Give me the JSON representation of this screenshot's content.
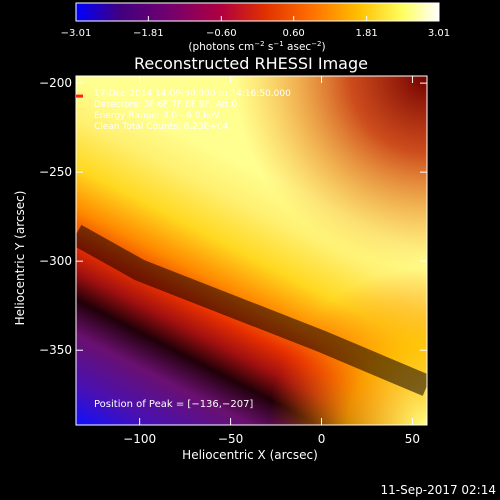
{
  "chart_data": {
    "type": "heatmap",
    "title": "Reconstructed RHESSI Image",
    "xlabel": "Heliocentric X (arcsec)",
    "ylabel": "Heliocentric Y (arcsec)",
    "xlim": [
      -135,
      58
    ],
    "ylim": [
      -392,
      -196
    ],
    "x_ticks": [
      -100,
      -50,
      0,
      50
    ],
    "x_tick_labels": [
      "−100",
      "−50",
      "0",
      "50"
    ],
    "y_ticks": [
      -200,
      -250,
      -300,
      -350
    ],
    "y_tick_labels": [
      "−200",
      "−250",
      "−300",
      "−350"
    ],
    "colorbar": {
      "range": [
        -3.01,
        3.01
      ],
      "ticks": [
        -3.01,
        -1.81,
        -0.6,
        0.6,
        1.81,
        3.01
      ],
      "tick_labels": [
        "−3.01",
        "−1.81",
        "−0.60",
        "0.60",
        "1.81",
        "3.01"
      ],
      "unit_label": "(photons cm",
      "unit_label_sup1": "−2",
      "unit_label_mid": " s",
      "unit_label_sup2": "−1",
      "unit_label_mid2": " asec",
      "unit_label_sup3": "−2",
      "unit_label_end": ")",
      "colors": [
        "#0000ff",
        "#400080",
        "#700070",
        "#b00040",
        "#e03000",
        "#ff7000",
        "#ffc000",
        "#ffff60",
        "#ffffff"
      ]
    },
    "ridge_line": {
      "x": [
        -135,
        -100,
        -50,
        0,
        58
      ],
      "y": [
        -285,
        -305,
        -325,
        -345,
        -370
      ]
    },
    "peak": {
      "x": -136,
      "y": -207
    },
    "grid": false
  },
  "annotations": {
    "time_range": "17-Dec-2014 14:09:50.000 to 14:16:50.000",
    "detectors": "Detectors: 3F 6F 7F 8F 9F, Att 0",
    "energy": "Energy Range: 3.0 - 6.0 keV",
    "clean": "Clean    Total Counts: 8.23E+04",
    "peak_text": "Position of Peak = [−136,−207]"
  },
  "footer": {
    "timestamp": "11-Sep-2017 02:14"
  }
}
